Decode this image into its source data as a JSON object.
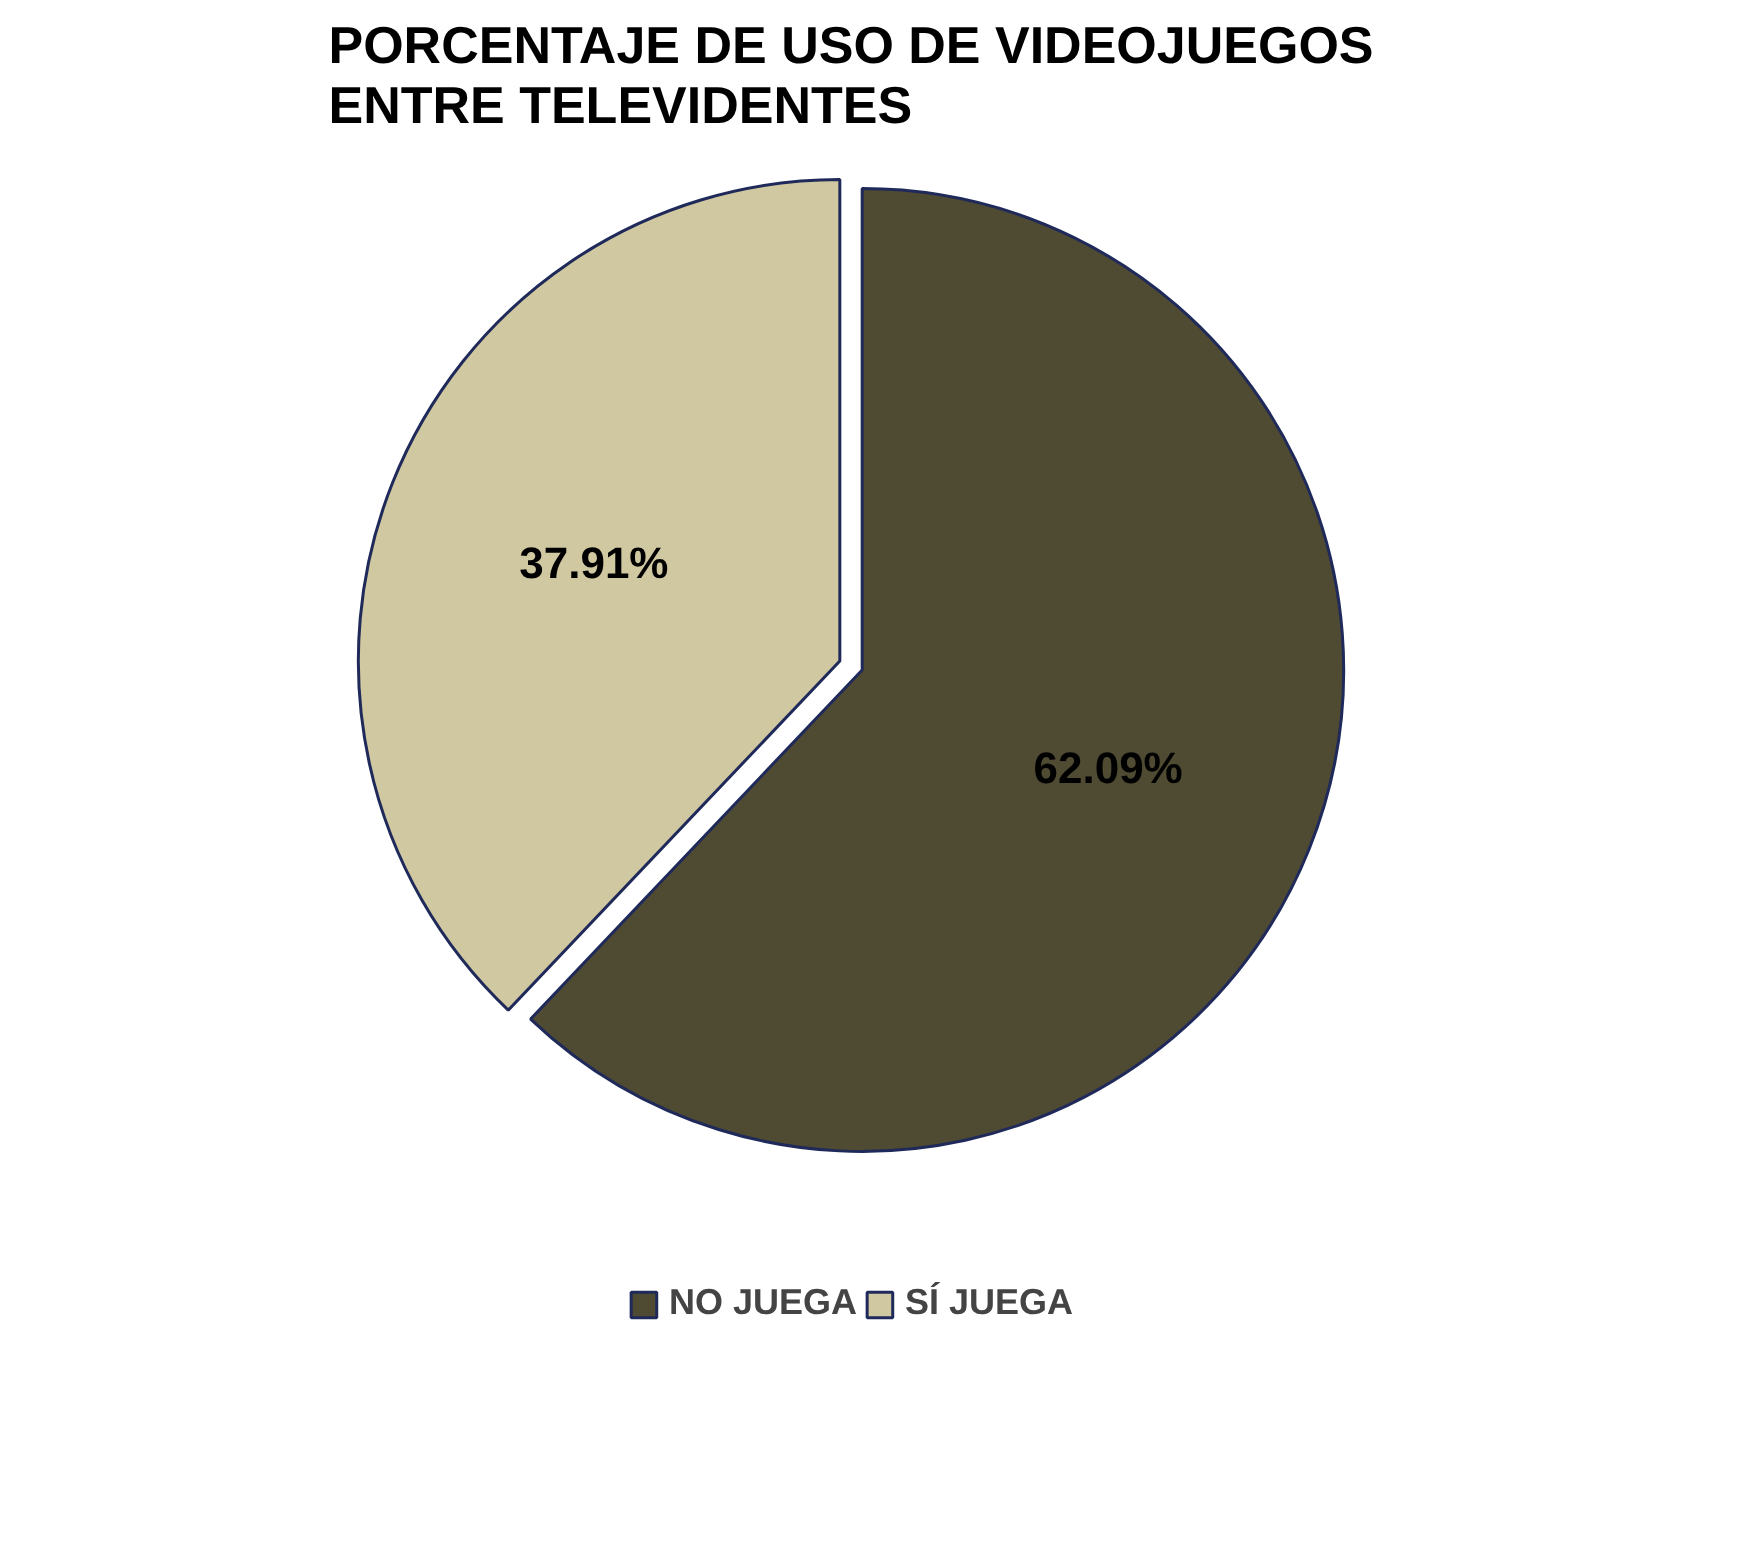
{
  "chart_data": {
    "type": "pie",
    "title": "PORCENTAJE DE USO DE VIDEOJUEGOS\nENTRE TELEVIDENTES",
    "categories": [
      "NO JUEGA",
      "SÍ JUEGA"
    ],
    "values": [
      62.09,
      37.91
    ],
    "colors": [
      "#4f4a32",
      "#d0c8a0"
    ],
    "value_labels": [
      "62.09%",
      "37.91%"
    ],
    "legend": "bottom"
  }
}
